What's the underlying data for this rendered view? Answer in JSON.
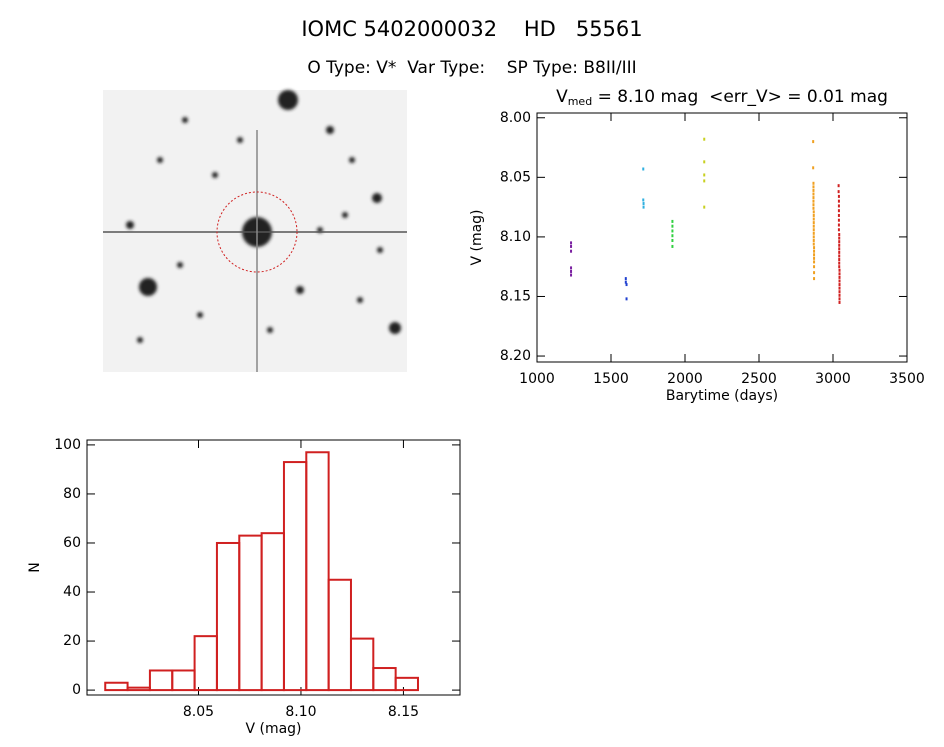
{
  "page_title": "IOMC 5402000032    HD   55561",
  "page_subtitle": "O Type: V*  Var Type:    SP Type: B8II/III",
  "chart_data": [
    {
      "type": "scatter",
      "title": "V",
      "title_sub": "med",
      "title_rest": " = 8.10 mag  <err_V> = 0.01 mag",
      "x_label": "Barytime (days)",
      "y_label": "V (mag)",
      "xlim": [
        1000,
        3500
      ],
      "xticks": [
        1000,
        1500,
        2000,
        2500,
        3000,
        3500
      ],
      "ylim": [
        8.205,
        7.996
      ],
      "yticks": [
        {
          "value": 8,
          "label": "8.00"
        },
        8.05,
        {
          "value": 8.1,
          "label": "8.10"
        },
        8.15,
        {
          "value": 8.2,
          "label": "8.20"
        }
      ],
      "series": [
        {
          "color": "#7a1fa0",
          "x": [
            1230,
            1230,
            1230,
            1230,
            1230,
            1230
          ],
          "values": [
            8.105,
            8.108,
            8.112,
            8.126,
            8.129,
            8.132
          ]
        },
        {
          "color": "#2040d0",
          "x": [
            1600,
            1600,
            1605,
            1605
          ],
          "values": [
            8.135,
            8.138,
            8.14,
            8.152
          ]
        },
        {
          "color": "#30b0e0",
          "x": [
            1718,
            1718,
            1720,
            1720
          ],
          "values": [
            8.043,
            8.069,
            8.072,
            8.075
          ]
        },
        {
          "color": "#30d040",
          "x": [
            1915,
            1915,
            1915,
            1915,
            1915,
            1915
          ],
          "values": [
            8.087,
            8.091,
            8.095,
            8.099,
            8.103,
            8.108
          ]
        },
        {
          "color": "#c8d020",
          "x": [
            2130,
            2130,
            2130,
            2130,
            2130
          ],
          "values": [
            8.018,
            8.037,
            8.048,
            8.053,
            8.075
          ]
        },
        {
          "color": "#f0a020",
          "x": [
            2866,
            2866,
            2868,
            2868,
            2868,
            2868,
            2868,
            2868,
            2868,
            2868,
            2870,
            2870,
            2870,
            2870,
            2870,
            2870,
            2870,
            2870,
            2870,
            2870,
            2872,
            2872,
            2872,
            2872,
            2872,
            2872,
            2872,
            2872
          ],
          "values": [
            8.02,
            8.042,
            8.055,
            8.058,
            8.061,
            8.064,
            8.067,
            8.07,
            8.073,
            8.076,
            8.079,
            8.082,
            8.085,
            8.088,
            8.091,
            8.094,
            8.097,
            8.1,
            8.103,
            8.106,
            8.109,
            8.112,
            8.115,
            8.118,
            8.121,
            8.125,
            8.13,
            8.135
          ]
        },
        {
          "color": "#d02020",
          "x": [
            3038,
            3038,
            3040,
            3040,
            3040,
            3040,
            3040,
            3040,
            3040,
            3040,
            3042,
            3042,
            3042,
            3042,
            3042,
            3042,
            3042,
            3042,
            3042,
            3042,
            3044,
            3044,
            3044,
            3044,
            3044,
            3044,
            3044,
            3044,
            3044,
            3044
          ],
          "values": [
            8.057,
            8.062,
            8.066,
            8.07,
            8.074,
            8.078,
            8.082,
            8.086,
            8.09,
            8.094,
            8.098,
            8.101,
            8.104,
            8.107,
            8.11,
            8.113,
            8.116,
            8.119,
            8.122,
            8.125,
            8.128,
            8.131,
            8.134,
            8.137,
            8.14,
            8.143,
            8.146,
            8.149,
            8.152,
            8.155
          ]
        }
      ]
    },
    {
      "type": "histogram",
      "x_label": "V (mag)",
      "y_label": "N",
      "color": "#d02020",
      "bins": [
        8.0045,
        8.0154,
        8.0263,
        8.0372,
        8.0481,
        8.059,
        8.0699,
        8.0808,
        8.0917,
        8.1026,
        8.1135,
        8.1244,
        8.1353,
        8.1462,
        8.1571
      ],
      "counts": [
        3,
        1,
        8,
        8,
        22,
        60,
        63,
        64,
        93,
        97,
        45,
        21,
        9,
        5
      ],
      "xlim": [
        7.9956,
        8.1776
      ],
      "xticks": [
        8.05,
        {
          "value": 8.1,
          "label": "8.10"
        },
        8.15
      ],
      "ylim": [
        -2,
        102
      ],
      "yticks": [
        0,
        20,
        40,
        60,
        80,
        100
      ]
    }
  ]
}
